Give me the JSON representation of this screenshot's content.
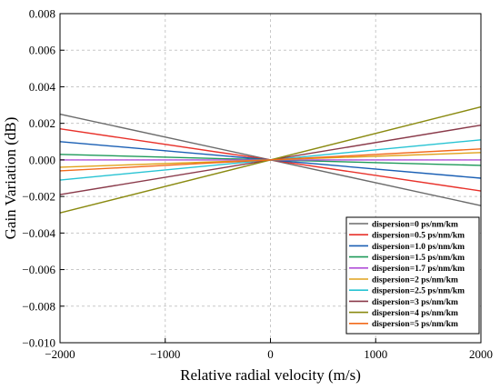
{
  "chart_data": {
    "type": "line",
    "xlabel": "Relative radial velocity (m/s)",
    "ylabel": "Gain Variation (dB)",
    "xlim": [
      -2000,
      2000
    ],
    "ylim": [
      -0.01,
      0.008
    ],
    "x_ticks": [
      -2000,
      -1000,
      0,
      1000,
      2000
    ],
    "x_tick_labels": [
      "−2000",
      "−1000",
      "0",
      "1000",
      "2000"
    ],
    "y_ticks": [
      0.008,
      0.006,
      0.004,
      0.002,
      0.0,
      -0.002,
      -0.004,
      -0.006,
      -0.008,
      -0.01
    ],
    "y_tick_labels": [
      "0.008",
      "0.006",
      "0.004",
      "0.002",
      "0.000",
      "−0.002",
      "−0.004",
      "−0.006",
      "−0.008",
      "−0.010"
    ],
    "grid": true,
    "legend_position": "bottom-right",
    "series": [
      {
        "name": "dispersion=0 ps/nm/km",
        "color": "#6b6b6b",
        "x": [
          -2000,
          2000
        ],
        "y": [
          0.0025,
          -0.0025
        ]
      },
      {
        "name": "dispersion=0.5 ps/nm/km",
        "color": "#e8312a",
        "x": [
          -2000,
          2000
        ],
        "y": [
          0.0017,
          -0.0017
        ]
      },
      {
        "name": "dispersion=1.0 ps/nm/km",
        "color": "#1a5fb4",
        "x": [
          -2000,
          2000
        ],
        "y": [
          0.001,
          -0.001
        ]
      },
      {
        "name": "dispersion=1.5 ps/nm/km",
        "color": "#1f9a5a",
        "x": [
          -2000,
          2000
        ],
        "y": [
          0.0003,
          -0.0003
        ]
      },
      {
        "name": "dispersion=1.7 ps/nm/km",
        "color": "#b14fd8",
        "x": [
          -2000,
          2000
        ],
        "y": [
          0.0,
          0.0
        ]
      },
      {
        "name": "dispersion=2 ps/nm/km",
        "color": "#e0a21b",
        "x": [
          -2000,
          2000
        ],
        "y": [
          -0.0004,
          0.0004
        ]
      },
      {
        "name": "dispersion=2.5 ps/nm/km",
        "color": "#27c3d3",
        "x": [
          -2000,
          2000
        ],
        "y": [
          -0.0011,
          0.0011
        ]
      },
      {
        "name": "dispersion=3 ps/nm/km",
        "color": "#8a3a4a",
        "x": [
          -2000,
          2000
        ],
        "y": [
          -0.0019,
          0.0019
        ]
      },
      {
        "name": "dispersion=4 ps/nm/km",
        "color": "#8a8a10",
        "x": [
          -2000,
          2000
        ],
        "y": [
          -0.0029,
          0.0029
        ]
      },
      {
        "name": "dispersion=5 ps/nm/km",
        "color": "#f26a1b",
        "x": [
          -2000,
          2000
        ],
        "y": [
          -0.0006,
          0.0006
        ]
      }
    ]
  }
}
